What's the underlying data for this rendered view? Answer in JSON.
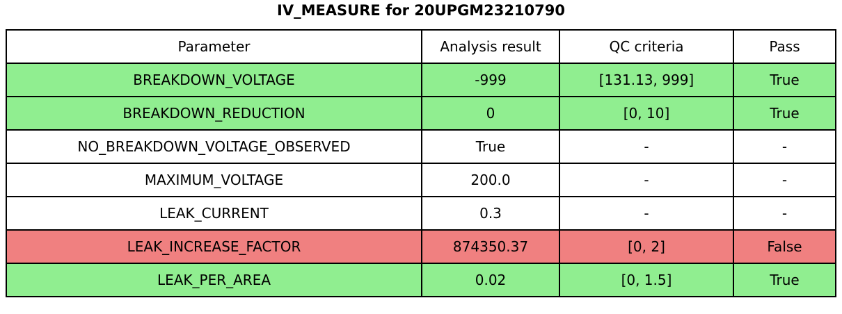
{
  "chart_data": {
    "type": "table",
    "title": "IV_MEASURE for 20UPGM23210790",
    "columns": [
      "Parameter",
      "Analysis result",
      "QC criteria",
      "Pass"
    ],
    "rows": [
      {
        "cells": [
          "BREAKDOWN_VOLTAGE",
          "-999",
          "[131.13, 999]",
          "True"
        ],
        "status": "pass",
        "color": "#90ee90"
      },
      {
        "cells": [
          "BREAKDOWN_REDUCTION",
          "0",
          "[0, 10]",
          "True"
        ],
        "status": "pass",
        "color": "#90ee90"
      },
      {
        "cells": [
          "NO_BREAKDOWN_VOLTAGE_OBSERVED",
          "True",
          "-",
          "-"
        ],
        "status": "neutral",
        "color": "#ffffff"
      },
      {
        "cells": [
          "MAXIMUM_VOLTAGE",
          "200.0",
          "-",
          "-"
        ],
        "status": "neutral",
        "color": "#ffffff"
      },
      {
        "cells": [
          "LEAK_CURRENT",
          "0.3",
          "-",
          "-"
        ],
        "status": "neutral",
        "color": "#ffffff"
      },
      {
        "cells": [
          "LEAK_INCREASE_FACTOR",
          "874350.37",
          "[0, 2]",
          "False"
        ],
        "status": "fail",
        "color": "#f08080"
      },
      {
        "cells": [
          "LEAK_PER_AREA",
          "0.02",
          "[0, 1.5]",
          "True"
        ],
        "status": "pass",
        "color": "#90ee90"
      }
    ],
    "layout_hints": {
      "header_background": "#ffffff",
      "border_color": "#000000",
      "text_color": "#000000",
      "pass_color": "#90ee90",
      "fail_color": "#f08080",
      "neutral_color": "#ffffff"
    }
  }
}
